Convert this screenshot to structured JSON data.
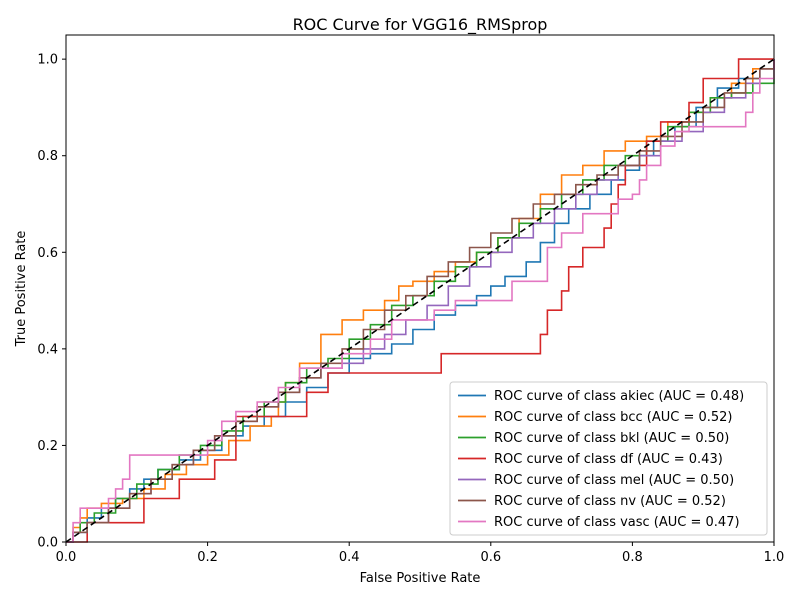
{
  "chart_data": {
    "type": "line",
    "title": "ROC Curve for VGG16_RMSprop",
    "xlabel": "False Positive Rate",
    "ylabel": "True Positive Rate",
    "xlim": [
      0.0,
      1.0
    ],
    "ylim": [
      0.0,
      1.05
    ],
    "xticks": [
      "0.0",
      "0.2",
      "0.4",
      "0.6",
      "0.8",
      "1.0"
    ],
    "yticks": [
      "0.0",
      "0.2",
      "0.4",
      "0.6",
      "0.8",
      "1.0"
    ],
    "grid": false,
    "legend_position": "lower-right",
    "chance_line": {
      "x": [
        0,
        1
      ],
      "y": [
        0,
        1
      ],
      "color": "#000000",
      "style": "dashed"
    },
    "series": [
      {
        "name": "ROC curve of class akiec (AUC = 0.48)",
        "color": "#1f77b4",
        "x": [
          0,
          0.01,
          0.03,
          0.05,
          0.07,
          0.09,
          0.11,
          0.13,
          0.16,
          0.19,
          0.22,
          0.25,
          0.28,
          0.31,
          0.34,
          0.37,
          0.4,
          0.43,
          0.46,
          0.49,
          0.52,
          0.55,
          0.58,
          0.6,
          0.62,
          0.65,
          0.67,
          0.69,
          0.71,
          0.74,
          0.77,
          0.79,
          0.81,
          0.83,
          0.86,
          0.89,
          0.92,
          0.95,
          0.98,
          1.0
        ],
        "y": [
          0,
          0.02,
          0.05,
          0.07,
          0.09,
          0.11,
          0.13,
          0.15,
          0.17,
          0.19,
          0.22,
          0.24,
          0.26,
          0.29,
          0.32,
          0.35,
          0.38,
          0.39,
          0.41,
          0.44,
          0.47,
          0.49,
          0.51,
          0.53,
          0.55,
          0.58,
          0.62,
          0.66,
          0.69,
          0.72,
          0.75,
          0.77,
          0.8,
          0.83,
          0.86,
          0.9,
          0.94,
          0.96,
          0.98,
          1.0
        ]
      },
      {
        "name": "ROC curve of class bcc (AUC = 0.52)",
        "color": "#ff7f0e",
        "x": [
          0,
          0.01,
          0.02,
          0.03,
          0.05,
          0.08,
          0.11,
          0.14,
          0.17,
          0.2,
          0.23,
          0.26,
          0.29,
          0.3,
          0.31,
          0.33,
          0.36,
          0.39,
          0.42,
          0.45,
          0.47,
          0.49,
          0.52,
          0.55,
          0.58,
          0.61,
          0.64,
          0.67,
          0.7,
          0.73,
          0.76,
          0.79,
          0.82,
          0.85,
          0.88,
          0.91,
          0.94,
          0.97,
          1.0
        ],
        "y": [
          0,
          0.03,
          0.05,
          0.07,
          0.08,
          0.09,
          0.11,
          0.14,
          0.16,
          0.18,
          0.21,
          0.24,
          0.26,
          0.29,
          0.33,
          0.37,
          0.43,
          0.46,
          0.48,
          0.5,
          0.53,
          0.54,
          0.56,
          0.58,
          0.6,
          0.63,
          0.67,
          0.72,
          0.76,
          0.78,
          0.81,
          0.83,
          0.84,
          0.87,
          0.89,
          0.92,
          0.95,
          0.98,
          1.0
        ]
      },
      {
        "name": "ROC curve of class bkl (AUC = 0.50)",
        "color": "#2ca02c",
        "x": [
          0,
          0.01,
          0.02,
          0.04,
          0.07,
          0.1,
          0.13,
          0.16,
          0.19,
          0.22,
          0.25,
          0.28,
          0.31,
          0.34,
          0.37,
          0.4,
          0.43,
          0.46,
          0.49,
          0.52,
          0.55,
          0.58,
          0.61,
          0.64,
          0.67,
          0.7,
          0.73,
          0.76,
          0.79,
          0.82,
          0.85,
          0.88,
          0.91,
          0.94,
          0.97,
          1.0
        ],
        "y": [
          0,
          0.02,
          0.04,
          0.06,
          0.09,
          0.12,
          0.15,
          0.18,
          0.2,
          0.23,
          0.26,
          0.29,
          0.33,
          0.36,
          0.38,
          0.42,
          0.45,
          0.49,
          0.51,
          0.54,
          0.57,
          0.6,
          0.63,
          0.66,
          0.69,
          0.72,
          0.75,
          0.78,
          0.8,
          0.83,
          0.86,
          0.89,
          0.92,
          0.93,
          0.95,
          1.0
        ]
      },
      {
        "name": "ROC curve of class df (AUC = 0.43)",
        "color": "#d62728",
        "x": [
          0,
          0.02,
          0.03,
          0.1,
          0.11,
          0.15,
          0.16,
          0.2,
          0.21,
          0.23,
          0.24,
          0.27,
          0.33,
          0.34,
          0.37,
          0.48,
          0.53,
          0.6,
          0.66,
          0.67,
          0.68,
          0.69,
          0.7,
          0.71,
          0.72,
          0.73,
          0.74,
          0.76,
          0.77,
          0.78,
          0.79,
          0.8,
          0.82,
          0.84,
          0.86,
          0.88,
          0.9,
          0.92,
          0.95,
          0.97,
          1.0
        ],
        "y": [
          0,
          0.0,
          0.04,
          0.04,
          0.09,
          0.09,
          0.13,
          0.13,
          0.17,
          0.17,
          0.26,
          0.26,
          0.26,
          0.31,
          0.35,
          0.35,
          0.39,
          0.39,
          0.39,
          0.43,
          0.48,
          0.48,
          0.52,
          0.57,
          0.57,
          0.61,
          0.61,
          0.65,
          0.7,
          0.74,
          0.78,
          0.78,
          0.83,
          0.87,
          0.87,
          0.91,
          0.96,
          0.96,
          1.0,
          1.0,
          1.0
        ]
      },
      {
        "name": "ROC curve of class mel (AUC = 0.50)",
        "color": "#9467bd",
        "x": [
          0,
          0.01,
          0.03,
          0.06,
          0.09,
          0.12,
          0.15,
          0.18,
          0.21,
          0.24,
          0.27,
          0.3,
          0.33,
          0.36,
          0.39,
          0.42,
          0.45,
          0.48,
          0.51,
          0.54,
          0.57,
          0.6,
          0.63,
          0.66,
          0.69,
          0.72,
          0.75,
          0.78,
          0.81,
          0.84,
          0.87,
          0.9,
          0.93,
          0.96,
          0.98,
          1.0
        ],
        "y": [
          0,
          0.02,
          0.04,
          0.07,
          0.1,
          0.13,
          0.16,
          0.19,
          0.22,
          0.25,
          0.28,
          0.31,
          0.34,
          0.36,
          0.37,
          0.4,
          0.43,
          0.46,
          0.49,
          0.53,
          0.57,
          0.6,
          0.63,
          0.66,
          0.69,
          0.72,
          0.75,
          0.78,
          0.8,
          0.83,
          0.85,
          0.89,
          0.92,
          0.95,
          0.98,
          1.0
        ]
      },
      {
        "name": "ROC curve of class nv (AUC = 0.52)",
        "color": "#8c564b",
        "x": [
          0,
          0.01,
          0.03,
          0.06,
          0.09,
          0.12,
          0.15,
          0.18,
          0.21,
          0.24,
          0.27,
          0.3,
          0.33,
          0.36,
          0.39,
          0.42,
          0.45,
          0.48,
          0.51,
          0.54,
          0.57,
          0.6,
          0.63,
          0.66,
          0.69,
          0.72,
          0.75,
          0.78,
          0.81,
          0.84,
          0.87,
          0.9,
          0.93,
          0.96,
          0.98,
          1.0
        ],
        "y": [
          0,
          0.02,
          0.04,
          0.07,
          0.1,
          0.13,
          0.16,
          0.19,
          0.22,
          0.25,
          0.28,
          0.31,
          0.34,
          0.37,
          0.4,
          0.44,
          0.48,
          0.51,
          0.55,
          0.58,
          0.61,
          0.64,
          0.67,
          0.7,
          0.72,
          0.74,
          0.76,
          0.78,
          0.81,
          0.84,
          0.87,
          0.9,
          0.93,
          0.96,
          0.98,
          1.0
        ]
      },
      {
        "name": "ROC curve of class vasc (AUC = 0.47)",
        "color": "#e377c2",
        "x": [
          0,
          0.01,
          0.02,
          0.05,
          0.06,
          0.07,
          0.08,
          0.09,
          0.17,
          0.2,
          0.22,
          0.24,
          0.27,
          0.3,
          0.33,
          0.36,
          0.39,
          0.42,
          0.43,
          0.46,
          0.49,
          0.52,
          0.55,
          0.59,
          0.63,
          0.67,
          0.68,
          0.7,
          0.73,
          0.77,
          0.78,
          0.8,
          0.81,
          0.82,
          0.84,
          0.86,
          0.88,
          0.93,
          0.96,
          0.97,
          0.98,
          1.0
        ],
        "y": [
          0,
          0.04,
          0.07,
          0.07,
          0.09,
          0.11,
          0.13,
          0.18,
          0.18,
          0.21,
          0.25,
          0.27,
          0.29,
          0.32,
          0.36,
          0.36,
          0.39,
          0.39,
          0.42,
          0.46,
          0.46,
          0.48,
          0.5,
          0.5,
          0.54,
          0.54,
          0.61,
          0.64,
          0.68,
          0.68,
          0.71,
          0.72,
          0.75,
          0.78,
          0.82,
          0.85,
          0.86,
          0.86,
          0.89,
          0.93,
          0.96,
          1.0
        ]
      }
    ]
  }
}
